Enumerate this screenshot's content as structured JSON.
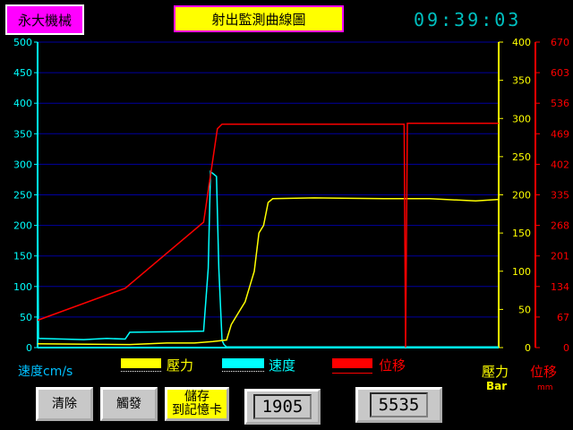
{
  "header": {
    "brand": "永大機械",
    "title": "射出監測曲線圖",
    "clock": "09:39:03"
  },
  "legend": {
    "velocity_unit": "速度cm/s",
    "pressure": "壓力",
    "velocity": "速度",
    "position": "位移",
    "pressure_axis_label": "壓力",
    "pressure_axis_unit": "Bar",
    "position_axis_label": "位移",
    "position_axis_unit": "mm"
  },
  "buttons": {
    "clear": "清除",
    "trigger": "觸發",
    "save_line1": "儲存",
    "save_line2": "到記憶卡"
  },
  "counters": {
    "left": "1905",
    "right": "5535"
  },
  "colors": {
    "velocity": "#00ffff",
    "pressure": "#ffff00",
    "position": "#ff0000",
    "grid": "#0000a0",
    "brand_bg": "#ff00ff",
    "title_bg": "#ffff00"
  },
  "chart_data": {
    "type": "line",
    "title": "射出監測曲線圖",
    "x_range": [
      0,
      100
    ],
    "axes": {
      "velocity": {
        "label": "速度cm/s",
        "range": [
          0,
          500
        ],
        "ticks": [
          0,
          50,
          100,
          150,
          200,
          250,
          300,
          350,
          400,
          450,
          500
        ]
      },
      "pressure": {
        "label": "壓力 Bar",
        "range": [
          0,
          400
        ],
        "ticks": [
          0,
          50,
          100,
          150,
          200,
          250,
          300,
          350,
          400
        ]
      },
      "position": {
        "label": "位移 mm",
        "range": [
          0,
          670
        ],
        "ticks": [
          0,
          67,
          134,
          201,
          268,
          335,
          402,
          469,
          536,
          603,
          670
        ]
      }
    },
    "grid": true,
    "series": [
      {
        "name": "速度",
        "axis": "velocity",
        "color": "#00ffff",
        "points": [
          [
            0,
            255
          ],
          [
            0.2,
            15
          ],
          [
            10,
            13
          ],
          [
            15,
            15
          ],
          [
            19,
            14
          ],
          [
            20,
            25
          ],
          [
            30,
            26
          ],
          [
            36,
            27
          ],
          [
            37,
            130
          ],
          [
            37.5,
            288
          ],
          [
            38,
            285
          ],
          [
            38.8,
            280
          ],
          [
            39.3,
            130
          ],
          [
            40,
            12
          ],
          [
            40.4,
            5
          ],
          [
            41,
            1
          ],
          [
            100,
            1
          ]
        ]
      },
      {
        "name": "壓力",
        "axis": "pressure",
        "color": "#ffff00",
        "points": [
          [
            0,
            5
          ],
          [
            20,
            4
          ],
          [
            28,
            6
          ],
          [
            34,
            6
          ],
          [
            38,
            8
          ],
          [
            41,
            10
          ],
          [
            42,
            30
          ],
          [
            43,
            40
          ],
          [
            44,
            50
          ],
          [
            45,
            60
          ],
          [
            46,
            80
          ],
          [
            47,
            100
          ],
          [
            48,
            150
          ],
          [
            49,
            160
          ],
          [
            50,
            190
          ],
          [
            51,
            195
          ],
          [
            60,
            196
          ],
          [
            75,
            195
          ],
          [
            85,
            195
          ],
          [
            95,
            192
          ],
          [
            100,
            194
          ]
        ]
      },
      {
        "name": "位移",
        "axis": "position",
        "color": "#ff0000",
        "points": [
          [
            0,
            60
          ],
          [
            19,
            130
          ],
          [
            36,
            275
          ],
          [
            39,
            480
          ],
          [
            40,
            490
          ],
          [
            79.5,
            490
          ],
          [
            79.8,
            0
          ],
          [
            80.2,
            492
          ],
          [
            100,
            492
          ]
        ]
      }
    ]
  }
}
